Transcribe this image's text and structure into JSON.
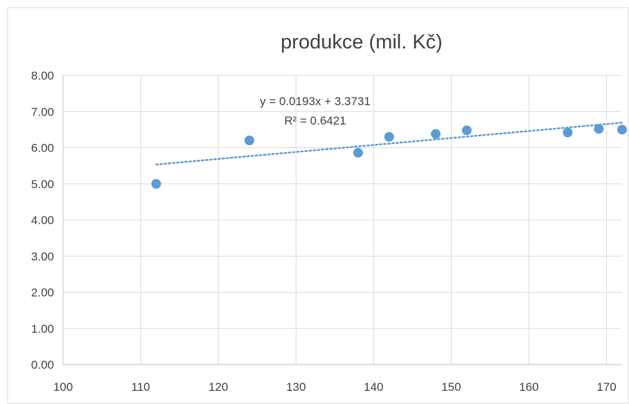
{
  "chart_data": {
    "type": "scatter",
    "title": "produkce (mil. Kč)",
    "xlim": [
      100,
      172
    ],
    "ylim": [
      0,
      8
    ],
    "x_ticks": [
      100,
      110,
      120,
      130,
      140,
      150,
      160,
      170
    ],
    "y_ticks": [
      "0.00",
      "1.00",
      "2.00",
      "3.00",
      "4.00",
      "5.00",
      "6.00",
      "7.00",
      "8.00"
    ],
    "grid": true,
    "marker_color": "#5b9bd5",
    "trendline_color": "#5b9bd5",
    "series": [
      {
        "points": [
          {
            "x": 112,
            "y": 5.0
          },
          {
            "x": 124,
            "y": 6.2
          },
          {
            "x": 138,
            "y": 5.86
          },
          {
            "x": 142,
            "y": 6.3
          },
          {
            "x": 148,
            "y": 6.38
          },
          {
            "x": 152,
            "y": 6.48
          },
          {
            "x": 165,
            "y": 6.42
          },
          {
            "x": 169,
            "y": 6.52
          },
          {
            "x": 172,
            "y": 6.5
          }
        ]
      }
    ],
    "trendline": {
      "type": "linear",
      "slope": 0.0193,
      "intercept": 3.3731,
      "x_start": 112,
      "x_end": 172,
      "equation": "y = 0.0193x + 3.3731",
      "r_squared": "R² = 0.6421"
    }
  }
}
